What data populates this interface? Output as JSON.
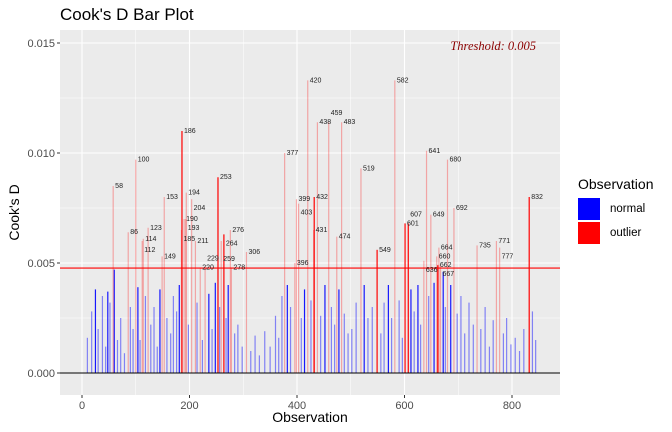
{
  "chart_data": {
    "type": "bar",
    "title": "Cook's D Bar Plot",
    "xlabel": "Observation",
    "ylabel": "Cook's D",
    "xlim": [
      -25,
      850
    ],
    "ylim": [
      -0.0006,
      0.0156
    ],
    "xticks": [
      0,
      200,
      400,
      600,
      800
    ],
    "yticks": [
      0.0,
      0.005,
      0.01,
      0.015
    ],
    "ytick_labels": [
      "0.000",
      "0.005",
      "0.010",
      "0.015"
    ],
    "threshold": 0.00477,
    "threshold_label": "Threshold: 0.005",
    "legend": {
      "title": "Observation",
      "placement": "right",
      "entries": [
        {
          "label": "normal",
          "color": "#0000FF"
        },
        {
          "label": "outlier",
          "color": "#FF0000"
        }
      ]
    },
    "outliers": [
      {
        "obs": 58,
        "value": 0.0085,
        "label": "58",
        "alpha": 0.3
      },
      {
        "obs": 86,
        "value": 0.0064,
        "label": "86",
        "alpha": 0.3
      },
      {
        "obs": 100,
        "value": 0.0097,
        "label": "100",
        "alpha": 0.3
      },
      {
        "obs": 112,
        "value": 0.006,
        "label": "112",
        "alpha": 0.3
      },
      {
        "obs": 114,
        "value": 0.0061,
        "label": "114",
        "alpha": 0.3
      },
      {
        "obs": 123,
        "value": 0.0066,
        "label": "123",
        "alpha": 0.3
      },
      {
        "obs": 149,
        "value": 0.0053,
        "label": "149",
        "alpha": 0.3
      },
      {
        "obs": 153,
        "value": 0.008,
        "label": "153",
        "alpha": 0.3
      },
      {
        "obs": 185,
        "value": 0.0065,
        "label": "185",
        "alpha": 0.3
      },
      {
        "obs": 186,
        "value": 0.011,
        "label": "186",
        "alpha": 1
      },
      {
        "obs": 190,
        "value": 0.007,
        "label": "190",
        "alpha": 0.3
      },
      {
        "obs": 193,
        "value": 0.007,
        "label": "193",
        "alpha": 0.3
      },
      {
        "obs": 194,
        "value": 0.0082,
        "label": "194",
        "alpha": 0.3
      },
      {
        "obs": 204,
        "value": 0.0079,
        "label": "204",
        "alpha": 0.3
      },
      {
        "obs": 211,
        "value": 0.006,
        "label": "211",
        "alpha": 0.3
      },
      {
        "obs": 220,
        "value": 0.0048,
        "label": "220",
        "alpha": 0.3
      },
      {
        "obs": 229,
        "value": 0.0048,
        "label": "229",
        "alpha": 0.3
      },
      {
        "obs": 253,
        "value": 0.0089,
        "label": "253",
        "alpha": 1
      },
      {
        "obs": 259,
        "value": 0.006,
        "label": "259",
        "alpha": 0.3
      },
      {
        "obs": 264,
        "value": 0.0063,
        "label": "264",
        "alpha": 1
      },
      {
        "obs": 276,
        "value": 0.0065,
        "label": "276",
        "alpha": 0.3
      },
      {
        "obs": 278,
        "value": 0.0048,
        "label": "278",
        "alpha": 0.3
      },
      {
        "obs": 306,
        "value": 0.0055,
        "label": "306",
        "alpha": 0.3
      },
      {
        "obs": 377,
        "value": 0.01,
        "label": "377",
        "alpha": 0.3
      },
      {
        "obs": 396,
        "value": 0.005,
        "label": "396",
        "alpha": 0.3
      },
      {
        "obs": 399,
        "value": 0.0079,
        "label": "399",
        "alpha": 0.3
      },
      {
        "obs": 403,
        "value": 0.0077,
        "label": "403",
        "alpha": 0.3
      },
      {
        "obs": 420,
        "value": 0.0133,
        "label": "420",
        "alpha": 0.3
      },
      {
        "obs": 431,
        "value": 0.0065,
        "label": "431",
        "alpha": 0.3
      },
      {
        "obs": 432,
        "value": 0.008,
        "label": "432",
        "alpha": 1
      },
      {
        "obs": 438,
        "value": 0.0114,
        "label": "438",
        "alpha": 0.3
      },
      {
        "obs": 459,
        "value": 0.0114,
        "label": "459",
        "alpha": 0.3
      },
      {
        "obs": 474,
        "value": 0.0062,
        "label": "474",
        "alpha": 0.3
      },
      {
        "obs": 483,
        "value": 0.0114,
        "label": "483",
        "alpha": 0.3
      },
      {
        "obs": 519,
        "value": 0.0093,
        "label": "519",
        "alpha": 0.3
      },
      {
        "obs": 549,
        "value": 0.0056,
        "label": "549",
        "alpha": 1
      },
      {
        "obs": 582,
        "value": 0.0133,
        "label": "582",
        "alpha": 0.3
      },
      {
        "obs": 601,
        "value": 0.0068,
        "label": "601",
        "alpha": 1
      },
      {
        "obs": 607,
        "value": 0.0068,
        "label": "607",
        "alpha": 1
      },
      {
        "obs": 636,
        "value": 0.0051,
        "label": "636",
        "alpha": 0.3
      },
      {
        "obs": 641,
        "value": 0.0101,
        "label": "641",
        "alpha": 0.3
      },
      {
        "obs": 649,
        "value": 0.0072,
        "label": "649",
        "alpha": 0.3
      },
      {
        "obs": 660,
        "value": 0.0053,
        "label": "660",
        "alpha": 0.3
      },
      {
        "obs": 662,
        "value": 0.0049,
        "label": "662",
        "alpha": 1
      },
      {
        "obs": 664,
        "value": 0.0057,
        "label": "664",
        "alpha": 0.3
      },
      {
        "obs": 667,
        "value": 0.0049,
        "label": "667",
        "alpha": 0.3
      },
      {
        "obs": 680,
        "value": 0.0097,
        "label": "680",
        "alpha": 0.3
      },
      {
        "obs": 692,
        "value": 0.0075,
        "label": "692",
        "alpha": 0.3
      },
      {
        "obs": 735,
        "value": 0.0058,
        "label": "735",
        "alpha": 0.3
      },
      {
        "obs": 771,
        "value": 0.006,
        "label": "771",
        "alpha": 0.3
      },
      {
        "obs": 777,
        "value": 0.0057,
        "label": "777",
        "alpha": 0.3
      },
      {
        "obs": 832,
        "value": 0.008,
        "label": "832",
        "alpha": 1
      }
    ],
    "normal": [
      [
        10,
        0.0016
      ],
      [
        18,
        0.0028
      ],
      [
        25,
        0.0038
      ],
      [
        30,
        0.002
      ],
      [
        38,
        0.0035
      ],
      [
        44,
        0.0012
      ],
      [
        48,
        0.0037
      ],
      [
        52,
        0.0032
      ],
      [
        60,
        0.0047
      ],
      [
        66,
        0.0015
      ],
      [
        72,
        0.0025
      ],
      [
        79,
        0.0009
      ],
      [
        90,
        0.003
      ],
      [
        95,
        0.002
      ],
      [
        104,
        0.0039
      ],
      [
        108,
        0.0015
      ],
      [
        118,
        0.0035
      ],
      [
        128,
        0.0022
      ],
      [
        134,
        0.003
      ],
      [
        140,
        0.0012
      ],
      [
        145,
        0.0038
      ],
      [
        158,
        0.0025
      ],
      [
        165,
        0.0018
      ],
      [
        170,
        0.0035
      ],
      [
        176,
        0.0028
      ],
      [
        181,
        0.004
      ],
      [
        198,
        0.0022
      ],
      [
        214,
        0.0032
      ],
      [
        224,
        0.0015
      ],
      [
        236,
        0.0036
      ],
      [
        242,
        0.002
      ],
      [
        248,
        0.0041
      ],
      [
        256,
        0.003
      ],
      [
        268,
        0.0025
      ],
      [
        272,
        0.004
      ],
      [
        284,
        0.0018
      ],
      [
        290,
        0.0022
      ],
      [
        298,
        0.0012
      ],
      [
        314,
        0.001
      ],
      [
        322,
        0.0017
      ],
      [
        330,
        0.0008
      ],
      [
        340,
        0.0019
      ],
      [
        350,
        0.0012
      ],
      [
        360,
        0.0026
      ],
      [
        366,
        0.0016
      ],
      [
        372,
        0.0035
      ],
      [
        382,
        0.004
      ],
      [
        388,
        0.003
      ],
      [
        408,
        0.0025
      ],
      [
        414,
        0.0038
      ],
      [
        426,
        0.0033
      ],
      [
        444,
        0.0026
      ],
      [
        452,
        0.004
      ],
      [
        464,
        0.003
      ],
      [
        470,
        0.0022
      ],
      [
        478,
        0.0038
      ],
      [
        488,
        0.0027
      ],
      [
        495,
        0.0018
      ],
      [
        502,
        0.002
      ],
      [
        510,
        0.0032
      ],
      [
        525,
        0.004
      ],
      [
        532,
        0.0025
      ],
      [
        540,
        0.003
      ],
      [
        556,
        0.0018
      ],
      [
        562,
        0.0032
      ],
      [
        570,
        0.004
      ],
      [
        576,
        0.0025
      ],
      [
        590,
        0.0033
      ],
      [
        596,
        0.0016
      ],
      [
        612,
        0.0038
      ],
      [
        618,
        0.0028
      ],
      [
        625,
        0.004
      ],
      [
        630,
        0.0022
      ],
      [
        645,
        0.0035
      ],
      [
        655,
        0.0041
      ],
      [
        672,
        0.0046
      ],
      [
        676,
        0.003
      ],
      [
        686,
        0.004
      ],
      [
        698,
        0.0027
      ],
      [
        705,
        0.0035
      ],
      [
        712,
        0.0018
      ],
      [
        720,
        0.0032
      ],
      [
        728,
        0.0022
      ],
      [
        742,
        0.002
      ],
      [
        750,
        0.003
      ],
      [
        758,
        0.0012
      ],
      [
        765,
        0.0024
      ],
      [
        784,
        0.0018
      ],
      [
        790,
        0.0025
      ],
      [
        798,
        0.0013
      ],
      [
        806,
        0.0016
      ],
      [
        814,
        0.001
      ],
      [
        822,
        0.002
      ],
      [
        838,
        0.0028
      ],
      [
        844,
        0.0015
      ]
    ]
  }
}
